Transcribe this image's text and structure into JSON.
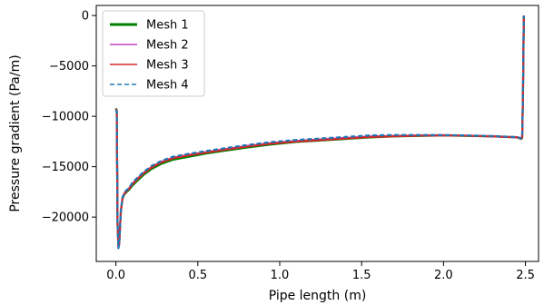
{
  "chart_data": {
    "type": "line",
    "title": "",
    "xlabel": "Pipe length (m)",
    "ylabel": "Pressure gradient (Pa/m)",
    "xlim": [
      -0.12,
      2.58
    ],
    "ylim": [
      -24400,
      1000
    ],
    "xticks": [
      0.0,
      0.5,
      1.0,
      1.5,
      2.0,
      2.5
    ],
    "xtick_labels": [
      "0.0",
      "0.5",
      "1.0",
      "1.5",
      "2.0",
      "2.5"
    ],
    "yticks": [
      0,
      -5000,
      -10000,
      -15000,
      -20000
    ],
    "ytick_labels": [
      "0",
      "−5000",
      "−10000",
      "−15000",
      "−20000"
    ],
    "grid": false,
    "legend_position": "top-left",
    "series": [
      {
        "name": "Mesh 1",
        "color": "#008000",
        "dash": "solid",
        "x": [
          0.0,
          0.005,
          0.01,
          0.015,
          0.02,
          0.025,
          0.03,
          0.04,
          0.05,
          0.06,
          0.08,
          0.1,
          0.13,
          0.17,
          0.22,
          0.28,
          0.35,
          0.45,
          0.55,
          0.65,
          0.8,
          0.95,
          1.1,
          1.25,
          1.4,
          1.55,
          1.7,
          1.85,
          2.0,
          2.15,
          2.3,
          2.45,
          2.475,
          2.48,
          2.485,
          2.49
        ],
        "y": [
          -9200,
          -9400,
          -20800,
          -22800,
          -22600,
          -21000,
          -19500,
          -18200,
          -17800,
          -17600,
          -17300,
          -16900,
          -16400,
          -15800,
          -15200,
          -14700,
          -14300,
          -14000,
          -13700,
          -13450,
          -13100,
          -12800,
          -12550,
          -12400,
          -12250,
          -12100,
          -12000,
          -11950,
          -11900,
          -11950,
          -12000,
          -12100,
          -12250,
          -12150,
          -8000,
          0
        ]
      },
      {
        "name": "Mesh 2",
        "color": "#c040c0",
        "dash": "solid",
        "x": [
          0.0,
          0.005,
          0.01,
          0.015,
          0.02,
          0.025,
          0.03,
          0.04,
          0.05,
          0.06,
          0.08,
          0.1,
          0.13,
          0.17,
          0.22,
          0.28,
          0.35,
          0.45,
          0.55,
          0.65,
          0.8,
          0.95,
          1.1,
          1.25,
          1.4,
          1.55,
          1.7,
          1.85,
          2.0,
          2.15,
          2.3,
          2.45,
          2.475,
          2.48,
          2.485,
          2.49
        ],
        "y": [
          -9300,
          -9500,
          -20600,
          -23000,
          -22700,
          -21100,
          -19400,
          -18100,
          -17700,
          -17450,
          -17150,
          -16700,
          -16200,
          -15600,
          -15000,
          -14500,
          -14100,
          -13800,
          -13550,
          -13300,
          -12950,
          -12650,
          -12450,
          -12300,
          -12150,
          -12000,
          -11950,
          -11900,
          -11880,
          -11920,
          -11980,
          -12080,
          -12200,
          -12100,
          -7800,
          0
        ]
      },
      {
        "name": "Mesh 3",
        "color": "#d62728",
        "dash": "solid",
        "x": [
          0.0,
          0.005,
          0.01,
          0.015,
          0.02,
          0.025,
          0.03,
          0.04,
          0.05,
          0.06,
          0.08,
          0.1,
          0.13,
          0.17,
          0.22,
          0.28,
          0.35,
          0.45,
          0.55,
          0.65,
          0.8,
          0.95,
          1.1,
          1.25,
          1.4,
          1.55,
          1.7,
          1.85,
          2.0,
          2.15,
          2.3,
          2.45,
          2.475,
          2.48,
          2.485,
          2.49
        ],
        "y": [
          -9250,
          -9450,
          -20700,
          -22900,
          -22650,
          -21050,
          -19450,
          -18150,
          -17750,
          -17500,
          -17200,
          -16750,
          -16250,
          -15650,
          -15050,
          -14550,
          -14150,
          -13850,
          -13600,
          -13350,
          -13000,
          -12700,
          -12500,
          -12350,
          -12200,
          -12050,
          -11980,
          -11920,
          -11890,
          -11930,
          -11990,
          -12090,
          -12220,
          -12120,
          -7900,
          0
        ]
      },
      {
        "name": "Mesh 4",
        "color": "#1f77b4",
        "dash": "dashed",
        "x": [
          0.0,
          0.005,
          0.01,
          0.015,
          0.02,
          0.025,
          0.03,
          0.04,
          0.05,
          0.06,
          0.08,
          0.1,
          0.13,
          0.17,
          0.22,
          0.28,
          0.35,
          0.45,
          0.55,
          0.65,
          0.8,
          0.95,
          1.1,
          1.25,
          1.4,
          1.55,
          1.7,
          1.85,
          2.0,
          2.15,
          2.3,
          2.45,
          2.475,
          2.48,
          2.485,
          2.49
        ],
        "y": [
          -9350,
          -9550,
          -20500,
          -23100,
          -22750,
          -21150,
          -19350,
          -18050,
          -17650,
          -17400,
          -17100,
          -16600,
          -16100,
          -15500,
          -14900,
          -14400,
          -14000,
          -13700,
          -13450,
          -13200,
          -12850,
          -12550,
          -12350,
          -12200,
          -12050,
          -11900,
          -11850,
          -11850,
          -11860,
          -11900,
          -11960,
          -12060,
          -12180,
          -12080,
          -7700,
          0
        ]
      }
    ]
  }
}
